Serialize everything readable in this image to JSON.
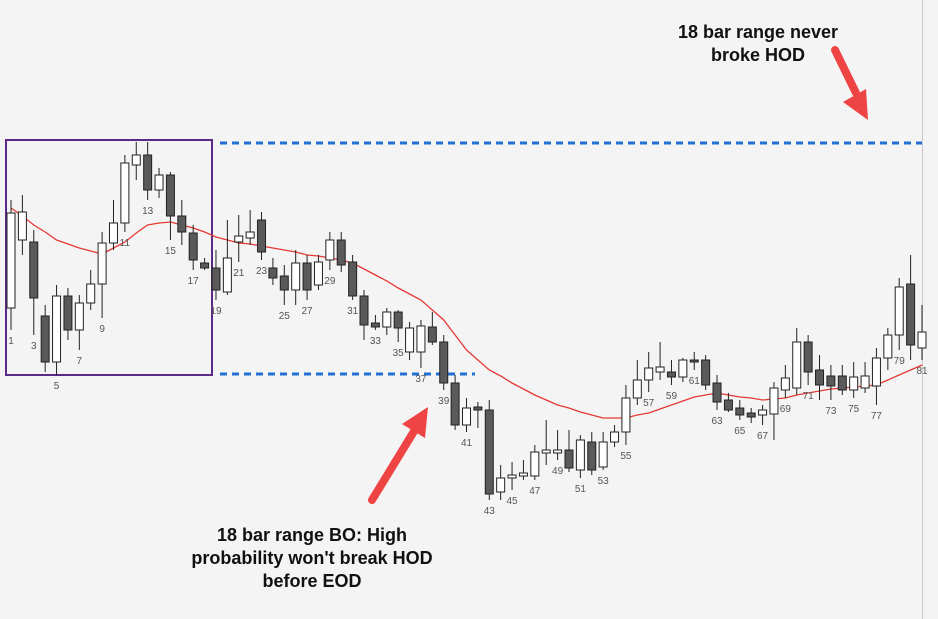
{
  "chart_data": {
    "type": "candlestick",
    "categories": [
      "1",
      null,
      "3",
      null,
      "5",
      null,
      "7",
      null,
      "9",
      null,
      "11",
      null,
      "13",
      null,
      "15",
      null,
      "17",
      null,
      "19",
      null,
      "21",
      null,
      "23",
      null,
      "25",
      null,
      "27",
      null,
      "29",
      null,
      "31",
      null,
      "33",
      null,
      "35",
      null,
      "37",
      null,
      "39",
      null,
      "41",
      null,
      "43",
      null,
      "45",
      null,
      "47",
      null,
      "49",
      null,
      "51",
      null,
      "53",
      null,
      "55",
      null,
      "57",
      null,
      "59",
      null,
      "61",
      null,
      "63",
      null,
      "65",
      null,
      "67",
      null,
      "69",
      null,
      "71",
      null,
      "73",
      null,
      "75",
      null,
      "77",
      null,
      "79",
      null,
      "81"
    ],
    "open": [
      312,
      380,
      378,
      304,
      258,
      324,
      290,
      317,
      336,
      377,
      397,
      455,
      465,
      430,
      445,
      404,
      387,
      357,
      352,
      328,
      378,
      382,
      400,
      352,
      344,
      330,
      357,
      335,
      360,
      380,
      358,
      324,
      297,
      293,
      308,
      268,
      268,
      293,
      278,
      237,
      195,
      213,
      210,
      128,
      142,
      144,
      144,
      167,
      167,
      170,
      150,
      178,
      153,
      178,
      188,
      222,
      240,
      248,
      248,
      243,
      260,
      260,
      237,
      220,
      212,
      207,
      205,
      206,
      230,
      232,
      278,
      250,
      244,
      244,
      230,
      232,
      234,
      262,
      285,
      336,
      272
    ],
    "high": [
      420,
      425,
      390,
      315,
      335,
      332,
      325,
      350,
      388,
      420,
      465,
      478,
      478,
      452,
      448,
      420,
      395,
      362,
      370,
      400,
      405,
      410,
      408,
      362,
      355,
      370,
      365,
      365,
      388,
      388,
      365,
      330,
      305,
      312,
      310,
      298,
      300,
      308,
      285,
      245,
      222,
      218,
      220,
      155,
      158,
      160,
      175,
      200,
      190,
      190,
      185,
      188,
      188,
      195,
      235,
      260,
      268,
      278,
      260,
      262,
      268,
      265,
      245,
      227,
      220,
      212,
      215,
      238,
      255,
      292,
      285,
      265,
      255,
      255,
      258,
      258,
      272,
      292,
      342,
      365,
      315
    ],
    "low": [
      290,
      365,
      285,
      248,
      245,
      280,
      270,
      310,
      302,
      370,
      388,
      440,
      420,
      422,
      380,
      375,
      350,
      350,
      320,
      325,
      358,
      375,
      360,
      335,
      315,
      315,
      320,
      330,
      350,
      348,
      320,
      280,
      290,
      285,
      278,
      260,
      252,
      275,
      230,
      190,
      188,
      192,
      120,
      120,
      130,
      140,
      140,
      155,
      160,
      148,
      142,
      145,
      150,
      173,
      175,
      215,
      228,
      240,
      235,
      238,
      250,
      230,
      210,
      208,
      200,
      197,
      195,
      180,
      222,
      225,
      235,
      220,
      220,
      225,
      222,
      227,
      215,
      250,
      270,
      260,
      260
    ],
    "close": [
      407,
      408,
      322,
      258,
      324,
      290,
      317,
      336,
      377,
      397,
      457,
      465,
      430,
      445,
      404,
      388,
      360,
      352,
      330,
      362,
      384,
      388,
      368,
      342,
      330,
      357,
      330,
      358,
      380,
      355,
      324,
      295,
      293,
      308,
      292,
      292,
      294,
      278,
      237,
      195,
      212,
      210,
      126,
      142,
      145,
      147,
      168,
      170,
      170,
      152,
      180,
      150,
      178,
      188,
      222,
      240,
      252,
      253,
      243,
      260,
      258,
      235,
      218,
      210,
      205,
      203,
      210,
      232,
      242,
      278,
      248,
      235,
      234,
      230,
      243,
      244,
      262,
      285,
      333,
      275,
      288
    ],
    "up_color": "#ffffff",
    "down_color": "#5a5a5a",
    "ema": [
      412,
      404,
      395,
      388,
      380,
      376,
      372,
      369,
      366,
      372,
      378,
      387,
      395,
      397,
      398,
      395,
      392,
      388,
      383,
      380,
      377,
      376,
      374,
      372,
      370,
      368,
      365,
      364,
      362,
      360,
      357,
      351,
      345,
      339,
      332,
      326,
      320,
      310,
      300,
      285,
      270,
      260,
      250,
      244,
      237,
      231,
      225,
      220,
      215,
      212,
      208,
      205,
      202,
      202,
      202,
      205,
      207,
      211,
      215,
      219,
      223,
      225,
      227,
      225,
      223,
      222,
      220,
      221,
      222,
      225,
      227,
      229,
      231,
      232,
      233,
      234,
      235,
      240,
      245,
      250,
      255
    ],
    "ema_color": "#e53935",
    "hlines": [
      477,
      246
    ],
    "hline_color": "#1f6fd6",
    "ylim": [
      0,
      620
    ],
    "annotations": [
      {
        "lines": [
          "18 bar range never",
          "broke HOD"
        ]
      },
      {
        "lines": [
          "18 bar range BO: High",
          "probability won't break HOD",
          "before EOD"
        ]
      }
    ]
  }
}
